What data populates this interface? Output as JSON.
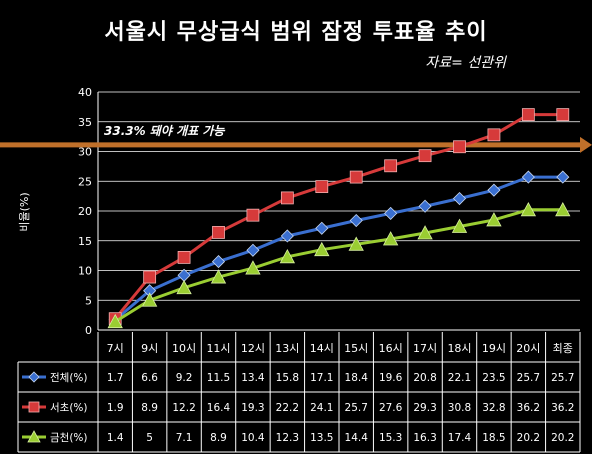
{
  "title": "서울시 무상급식 범위 잠정 투표율 추이",
  "source": "자료= 선관위",
  "chart_data": {
    "type": "line",
    "ylabel": "비율(%)",
    "ylim": [
      0,
      40
    ],
    "yticks": [
      "0",
      "5",
      "10",
      "15",
      "20",
      "25",
      "30",
      "35",
      "40"
    ],
    "categories": [
      "7시",
      "9시",
      "10시",
      "11시",
      "12시",
      "13시",
      "14시",
      "15시",
      "16시",
      "17시",
      "18시",
      "19시",
      "20시",
      "최종"
    ],
    "annotation": {
      "label": "33.3% 돼야 개표 가능",
      "value": 33.3,
      "color": "#c0702a"
    },
    "series": [
      {
        "name": "전체(%)",
        "color": "#3a6fd0",
        "marker": "diamond",
        "values": [
          1.7,
          6.6,
          9.2,
          11.5,
          13.4,
          15.8,
          17.1,
          18.4,
          19.6,
          20.8,
          22.1,
          23.5,
          25.7,
          25.7
        ]
      },
      {
        "name": "서초(%)",
        "color": "#d63a3a",
        "marker": "square",
        "values": [
          1.9,
          8.9,
          12.2,
          16.4,
          19.3,
          22.2,
          24.1,
          25.7,
          27.6,
          29.3,
          30.8,
          32.8,
          36.2,
          36.2
        ]
      },
      {
        "name": "금천(%)",
        "color": "#9acd32",
        "marker": "triangle",
        "values": [
          1.4,
          5,
          7.1,
          8.9,
          10.4,
          12.3,
          13.5,
          14.4,
          15.3,
          16.3,
          17.4,
          18.5,
          20.2,
          20.2
        ]
      }
    ]
  }
}
